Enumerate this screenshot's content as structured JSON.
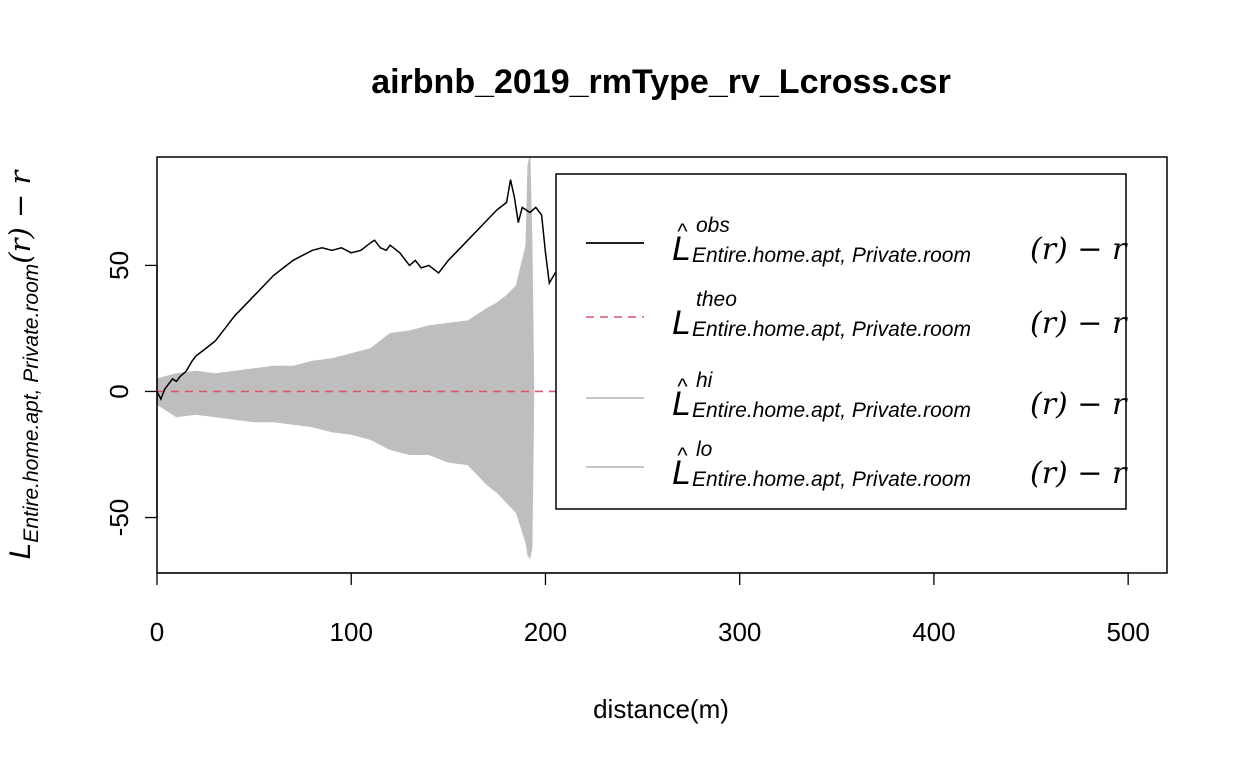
{
  "chart_data": {
    "type": "line",
    "title": "airbnb_2019_rmType_rv_Lcross.csr",
    "xlabel": "distance(m)",
    "ylabel": {
      "main": "L",
      "subscript": "Entire.home.apt, Private.room",
      "suffix": "(r) − r"
    },
    "xlim": [
      0,
      520
    ],
    "ylim": [
      -72,
      93
    ],
    "x_ticks": [
      "0",
      "100",
      "200",
      "300",
      "400",
      "500"
    ],
    "y_ticks": [
      "-50",
      "0",
      "50"
    ],
    "x_tick_values": [
      0,
      100,
      200,
      300,
      400,
      500
    ],
    "y_tick_values": [
      -50,
      0,
      50
    ],
    "legend": {
      "position": "top-right",
      "entries": [
        {
          "main": "L",
          "hat": "^",
          "superscript": "obs",
          "subscript": "Entire.home.apt, Private.room",
          "suffix": "(r) − r",
          "style": "solid",
          "color": "#000000"
        },
        {
          "main": "L",
          "hat": "",
          "superscript": "theo",
          "subscript": "Entire.home.apt, Private.room",
          "suffix": "(r) − r",
          "style": "dashed",
          "color": "#DF536B"
        },
        {
          "main": "L",
          "hat": "^",
          "superscript": "hi",
          "subscript": "Entire.home.apt, Private.room",
          "suffix": "(r) − r",
          "style": "solid",
          "color": "#BEBEBE"
        },
        {
          "main": "L",
          "hat": "^",
          "superscript": "lo",
          "subscript": "Entire.home.apt, Private.room",
          "suffix": "(r) − r",
          "style": "solid",
          "color": "#BEBEBE"
        }
      ]
    },
    "series": [
      {
        "name": "obs",
        "color": "#000000",
        "style": "solid",
        "x": [
          0,
          2,
          4,
          6,
          8,
          10,
          12,
          15,
          18,
          20,
          25,
          30,
          35,
          40,
          45,
          50,
          55,
          60,
          65,
          70,
          75,
          80,
          85,
          90,
          95,
          100,
          105,
          110,
          112,
          115,
          118,
          120,
          125,
          130,
          133,
          136,
          140,
          145,
          150,
          155,
          160,
          165,
          170,
          175,
          180,
          182,
          184,
          186,
          188,
          190,
          192,
          195,
          198,
          200,
          202,
          205,
          210,
          215,
          218,
          222
        ],
        "values": [
          0,
          -3,
          1,
          3,
          5,
          4,
          6,
          8,
          12,
          14,
          17,
          20,
          25,
          30,
          34,
          38,
          42,
          46,
          49,
          52,
          54,
          56,
          57,
          56,
          57,
          55,
          56,
          59,
          60,
          57,
          56,
          58,
          55,
          50,
          52,
          49,
          50,
          47,
          52,
          56,
          60,
          64,
          68,
          72,
          75,
          84,
          77,
          67,
          73,
          72,
          71,
          73,
          70,
          55,
          43,
          47,
          43,
          40,
          37,
          36
        ]
      },
      {
        "name": "theo",
        "color": "#DF536B",
        "style": "dashed",
        "x": [
          0,
          380
        ],
        "values": [
          0,
          0
        ]
      },
      {
        "name": "hi",
        "color": "#BEBEBE",
        "style": "band-upper",
        "x": [
          0,
          10,
          20,
          30,
          40,
          50,
          60,
          70,
          80,
          90,
          100,
          110,
          120,
          130,
          140,
          150,
          160,
          170,
          175,
          180,
          185,
          190,
          191,
          192,
          193,
          194
        ],
        "values": [
          5,
          7,
          8,
          7,
          8,
          9,
          10,
          10,
          12,
          13,
          15,
          17,
          23,
          24,
          26,
          27,
          28,
          33,
          35,
          38,
          42,
          58,
          90,
          93,
          60,
          0
        ]
      },
      {
        "name": "lo",
        "color": "#BEBEBE",
        "style": "band-lower",
        "x": [
          0,
          10,
          20,
          30,
          40,
          50,
          60,
          70,
          80,
          90,
          100,
          110,
          120,
          130,
          140,
          150,
          160,
          170,
          175,
          180,
          185,
          190,
          191,
          192,
          193,
          194
        ],
        "values": [
          -5,
          -10,
          -9,
          -10,
          -11,
          -12,
          -12,
          -13,
          -14,
          -16,
          -17,
          -19,
          -23,
          -25,
          -25,
          -28,
          -29,
          -37,
          -40,
          -44,
          -48,
          -60,
          -65,
          -66,
          -62,
          0
        ]
      }
    ]
  }
}
